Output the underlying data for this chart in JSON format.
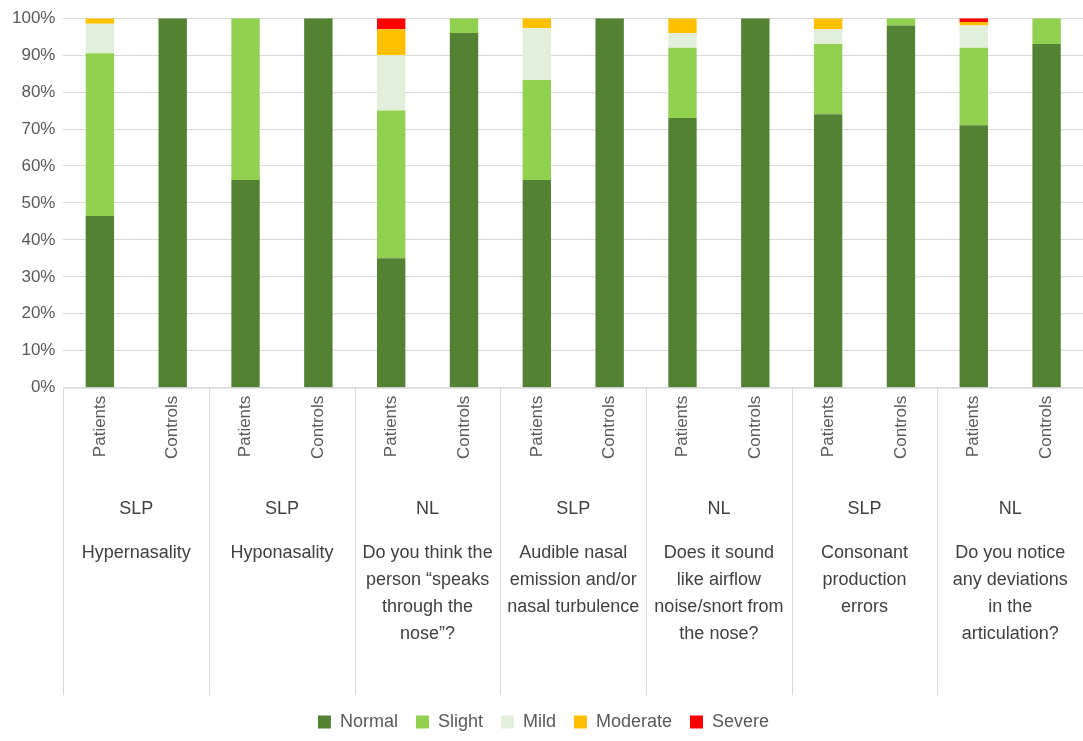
{
  "chart_data": {
    "type": "bar",
    "stacked": true,
    "categories": [
      "Patients",
      "Controls",
      "Patients",
      "Controls",
      "Patients",
      "Controls",
      "Patients",
      "Controls",
      "Patients",
      "Controls",
      "Patients",
      "Controls",
      "Patients",
      "Controls"
    ],
    "series": [
      {
        "name": "Normal",
        "color": "#548235",
        "values": [
          46.5,
          100,
          56.2,
          100,
          35,
          96,
          56.2,
          100,
          73,
          100,
          74,
          98,
          71,
          93
        ]
      },
      {
        "name": "Slight",
        "color": "#92d050",
        "values": [
          44,
          0,
          43.8,
          0,
          40,
          4,
          27.1,
          0,
          19,
          0,
          19,
          2,
          21,
          7
        ]
      },
      {
        "name": "Mild",
        "color": "#e2efda",
        "values": [
          8,
          0,
          0,
          0,
          15,
          0,
          14,
          0,
          4,
          0,
          4,
          0,
          6,
          0
        ]
      },
      {
        "name": "Moderate",
        "color": "#ffc000",
        "values": [
          1.5,
          0,
          0,
          0,
          7,
          0,
          2.7,
          0,
          4,
          0,
          3,
          0,
          1,
          0
        ]
      },
      {
        "name": "Severe",
        "color": "#ff0000",
        "values": [
          0,
          0,
          0,
          0,
          3,
          0,
          0,
          0,
          0,
          0,
          0,
          0,
          1,
          0
        ]
      }
    ],
    "ylim": [
      0,
      100
    ],
    "yticks": [
      {
        "value": 0,
        "label": "0%"
      },
      {
        "value": 10,
        "label": "10%"
      },
      {
        "value": 20,
        "label": "20%"
      },
      {
        "value": 30,
        "label": "30%"
      },
      {
        "value": 40,
        "label": "40%"
      },
      {
        "value": 50,
        "label": "50%"
      },
      {
        "value": 60,
        "label": "60%"
      },
      {
        "value": 70,
        "label": "70%"
      },
      {
        "value": 80,
        "label": "80%"
      },
      {
        "value": 90,
        "label": "90%"
      },
      {
        "value": 100,
        "label": "100%"
      }
    ],
    "grid": "y",
    "legend": "bottom",
    "annotations": [
      "SLP",
      "Hypernasality",
      "SLP",
      "Hyponasality",
      "NL",
      "Do you think the person “speaks through the nose”?",
      "SLP",
      "Audible nasal emission and/or nasal turbulence",
      "NL",
      "Does it sound like airflow noise/snort from the nose?",
      "SLP",
      "Consonant production errors",
      "NL",
      "Do you notice any deviations in the articulation?"
    ]
  }
}
